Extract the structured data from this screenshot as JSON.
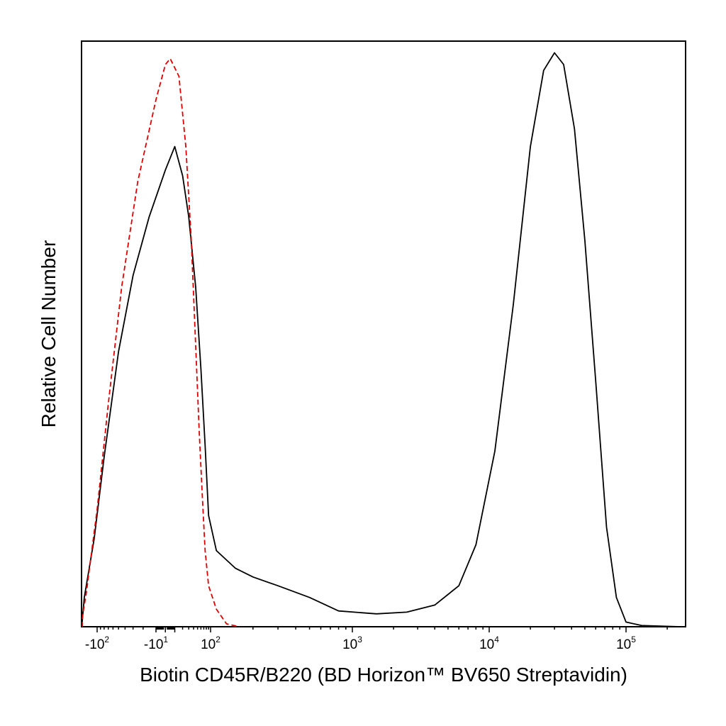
{
  "chart_data": {
    "type": "line",
    "title": "",
    "xlabel": "Biotin CD45R/B220 (BD Horizon™ BV650 Streptavidin)",
    "ylabel": "Relative Cell Number",
    "x_scale": "biexponential",
    "xlim": [
      -300,
      250000
    ],
    "ylim": [
      0,
      1.0
    ],
    "grid": false,
    "legend": "none",
    "x_ticks": [
      {
        "value": -100,
        "base": "-10",
        "exp": "2"
      },
      {
        "value": -10,
        "base": "-10",
        "exp": "1"
      },
      {
        "value": 100,
        "base": "10",
        "exp": "2"
      },
      {
        "value": 1000,
        "base": "10",
        "exp": "3"
      },
      {
        "value": 10000,
        "base": "10",
        "exp": "4"
      },
      {
        "value": 100000,
        "base": "10",
        "exp": "5"
      }
    ],
    "series": [
      {
        "color": "#000000",
        "dash": "solid",
        "points": [
          [
            -260,
            0.0
          ],
          [
            -200,
            0.01
          ],
          [
            -150,
            0.05
          ],
          [
            -110,
            0.15
          ],
          [
            -80,
            0.29
          ],
          [
            -50,
            0.47
          ],
          [
            -30,
            0.6
          ],
          [
            -15,
            0.7
          ],
          [
            0,
            0.78
          ],
          [
            10,
            0.82
          ],
          [
            20,
            0.77
          ],
          [
            30,
            0.7
          ],
          [
            45,
            0.58
          ],
          [
            60,
            0.44
          ],
          [
            75,
            0.31
          ],
          [
            90,
            0.19
          ],
          [
            110,
            0.13
          ],
          [
            150,
            0.1
          ],
          [
            200,
            0.085
          ],
          [
            300,
            0.07
          ],
          [
            500,
            0.05
          ],
          [
            800,
            0.027
          ],
          [
            1500,
            0.022
          ],
          [
            2500,
            0.025
          ],
          [
            4000,
            0.037
          ],
          [
            6000,
            0.07
          ],
          [
            8000,
            0.14
          ],
          [
            11000,
            0.3
          ],
          [
            15000,
            0.55
          ],
          [
            20000,
            0.82
          ],
          [
            25000,
            0.95
          ],
          [
            30000,
            0.98
          ],
          [
            35000,
            0.96
          ],
          [
            42000,
            0.85
          ],
          [
            50000,
            0.66
          ],
          [
            60000,
            0.42
          ],
          [
            72000,
            0.17
          ],
          [
            85000,
            0.05
          ],
          [
            100000,
            0.008
          ],
          [
            130000,
            0.002
          ],
          [
            250000,
            0.0
          ]
        ]
      },
      {
        "color": "#e00000",
        "dash": "dashed",
        "points": [
          [
            -240,
            0.0
          ],
          [
            -180,
            0.015
          ],
          [
            -140,
            0.06
          ],
          [
            -100,
            0.2
          ],
          [
            -70,
            0.38
          ],
          [
            -45,
            0.58
          ],
          [
            -25,
            0.76
          ],
          [
            -10,
            0.9
          ],
          [
            0,
            0.96
          ],
          [
            5,
            0.97
          ],
          [
            15,
            0.94
          ],
          [
            25,
            0.82
          ],
          [
            35,
            0.66
          ],
          [
            45,
            0.48
          ],
          [
            55,
            0.33
          ],
          [
            65,
            0.22
          ],
          [
            75,
            0.13
          ],
          [
            90,
            0.07
          ],
          [
            110,
            0.03
          ],
          [
            130,
            0.005
          ],
          [
            160,
            0.0
          ]
        ]
      }
    ]
  }
}
